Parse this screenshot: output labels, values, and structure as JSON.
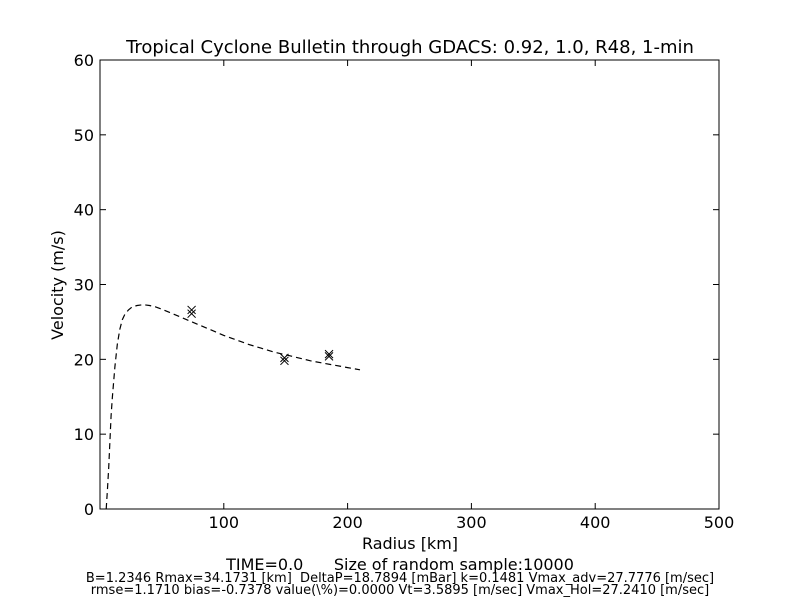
{
  "chart_data": {
    "type": "line",
    "title": "Tropical Cyclone Bulletin through GDACS: 0.92, 1.0, R48, 1-min",
    "xlabel": "Radius [km]",
    "ylabel": "Velocity (m/s)",
    "xlim": [
      0,
      500
    ],
    "ylim": [
      0,
      60
    ],
    "xticks": [
      100,
      200,
      300,
      400,
      500
    ],
    "xtick_labels": [
      "100",
      "200",
      "300",
      "400",
      "500"
    ],
    "yticks": [
      0,
      10,
      20,
      30,
      40,
      50,
      60
    ],
    "ytick_labels": [
      "0",
      "10",
      "20",
      "30",
      "40",
      "50",
      "60"
    ],
    "grid": false,
    "series": [
      {
        "style": "dashed",
        "color": "#000000",
        "x": [
          5,
          6,
          7,
          8,
          9,
          10,
          12,
          14,
          16,
          18,
          20,
          23,
          26,
          30,
          35,
          40,
          45,
          50,
          60,
          70,
          80,
          90,
          100,
          110,
          120,
          130,
          140,
          150,
          160,
          170,
          180,
          190,
          200,
          210
        ],
        "y": [
          0,
          2.5,
          5.5,
          9,
          12.5,
          15,
          19,
          22,
          24,
          25.3,
          26,
          26.6,
          27,
          27.2,
          27.3,
          27.2,
          27,
          26.7,
          26,
          25.3,
          24.6,
          23.9,
          23.2,
          22.6,
          22.0,
          21.5,
          21.0,
          20.6,
          20.2,
          19.8,
          19.5,
          19.2,
          18.9,
          18.6
        ]
      },
      {
        "style": "markers",
        "marker": "x",
        "color": "#000000",
        "x": [
          74,
          74,
          149,
          149,
          185,
          185
        ],
        "y": [
          26.6,
          26.1,
          20.2,
          19.8,
          20.7,
          20.4
        ]
      }
    ]
  },
  "footer": {
    "line1": "TIME=0.0      Size of random sample:10000",
    "line2": "B=1.2346 Rmax=34.1731 [km]  DeltaP=18.7894 [mBar] k=0.1481 Vmax_adv=27.7776 [m/sec]",
    "line3": "rmse=1.1710 bias=-0.7378 value(\\%)=0.0000 Vt=3.5895 [m/sec] Vmax_Hol=27.2410 [m/sec]"
  }
}
